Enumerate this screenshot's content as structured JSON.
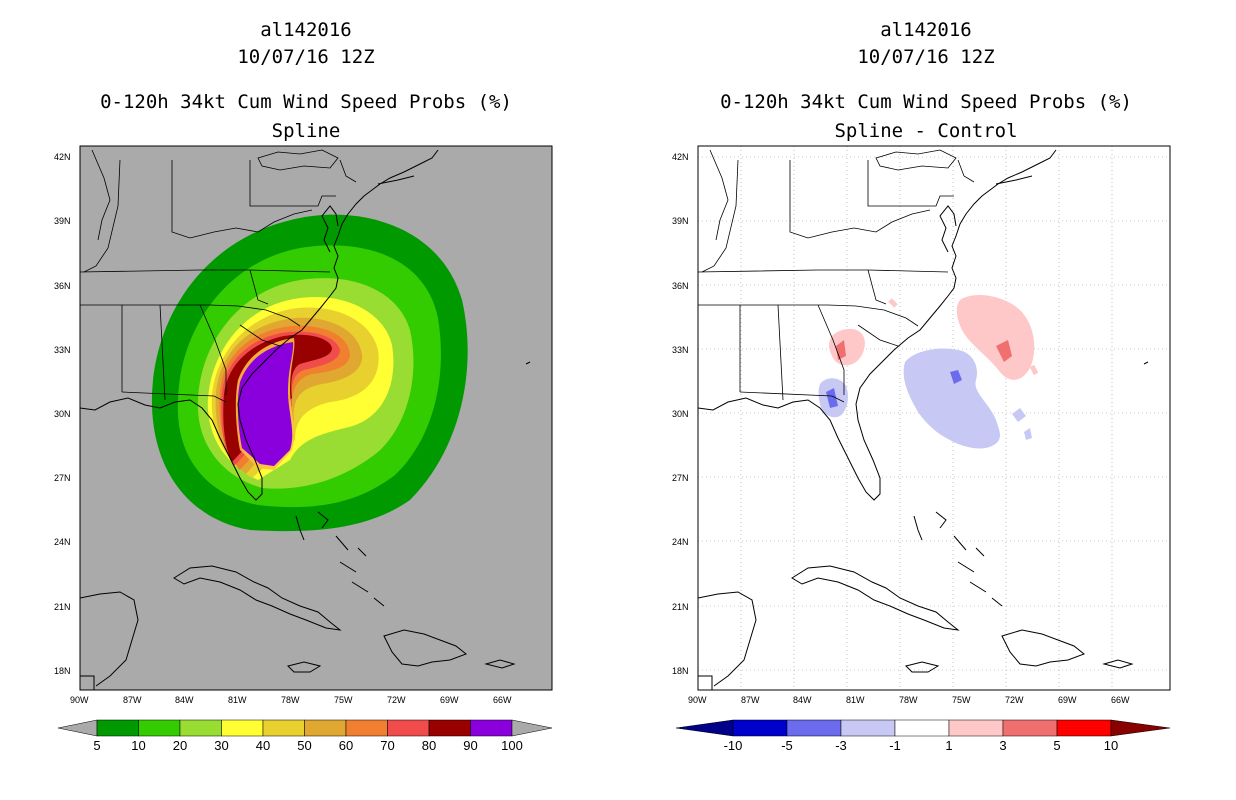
{
  "panels": [
    {
      "title1": "al142016",
      "title2": "10/07/16 12Z",
      "title3": "0-120h 34kt Cum Wind Speed Probs (%)",
      "subtitle": "Spline",
      "colorbar": {
        "labels": [
          "5",
          "10",
          "20",
          "30",
          "40",
          "50",
          "60",
          "70",
          "80",
          "90",
          "100"
        ],
        "colors": [
          "#009900",
          "#33cc00",
          "#99dd33",
          "#ffff33",
          "#e8d02e",
          "#e0a830",
          "#f07f30",
          "#f04c4c",
          "#990000",
          "#8a00dd"
        ],
        "end_color": "#aaaaaa"
      }
    },
    {
      "title1": "al142016",
      "title2": "10/07/16 12Z",
      "title3": "0-120h 34kt Cum Wind Speed Probs (%)",
      "subtitle": "Spline - Control",
      "colorbar": {
        "labels": [
          "-10",
          "-5",
          "-3",
          "-1",
          "1",
          "3",
          "5",
          "10"
        ],
        "colors": [
          "#0000cc",
          "#6b6bee",
          "#c8c8f5",
          "#ffffff",
          "#ffc8c8",
          "#f07070",
          "#ff0000"
        ],
        "end_colors": [
          "#000088",
          "#880000"
        ]
      }
    }
  ],
  "lat_ticks": [
    "42N",
    "39N",
    "36N",
    "33N",
    "30N",
    "27N",
    "24N",
    "21N",
    "18N"
  ],
  "lon_ticks": [
    "90W",
    "87W",
    "84W",
    "81W",
    "78W",
    "75W",
    "72W",
    "69W",
    "66W"
  ],
  "colors": {
    "ocean_gray": "#aaaaaa",
    "land_line": "#000000",
    "grid_gray": "#999999"
  }
}
